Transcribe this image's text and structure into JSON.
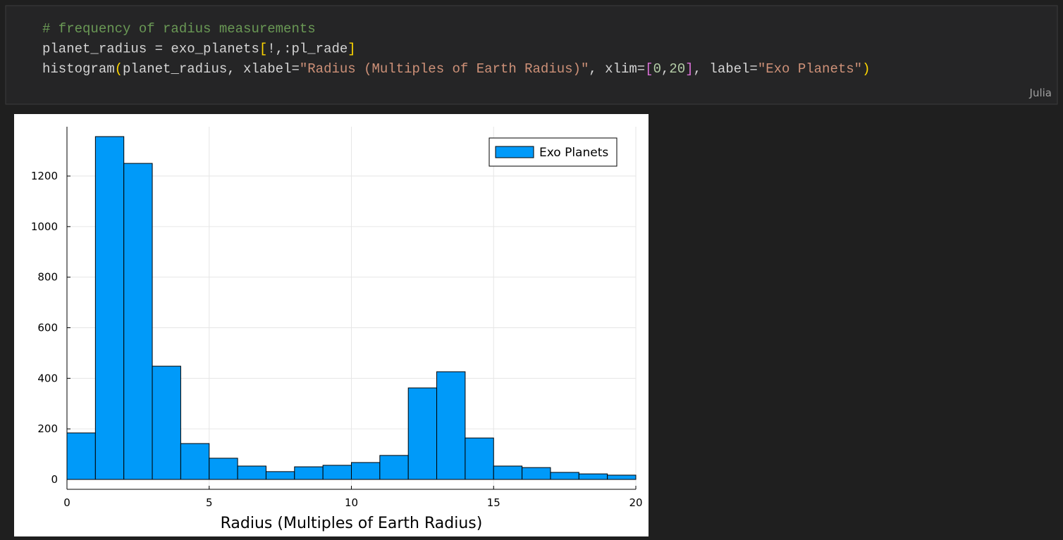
{
  "code": {
    "lines": [
      [
        {
          "text": "# frequency of radius measurements",
          "color": "#6a9955"
        }
      ],
      [
        {
          "text": "planet_radius = exo_planets",
          "color": "#d4d4d4"
        },
        {
          "text": "[",
          "color": "#ffd700"
        },
        {
          "text": "!,:pl_rade",
          "color": "#d4d4d4"
        },
        {
          "text": "]",
          "color": "#ffd700"
        }
      ],
      [
        {
          "text": "histogram",
          "color": "#d4d4d4"
        },
        {
          "text": "(",
          "color": "#ffd700"
        },
        {
          "text": "planet_radius, xlabel=",
          "color": "#d4d4d4"
        },
        {
          "text": "\"Radius (Multiples of Earth Radius)\"",
          "color": "#ce9178"
        },
        {
          "text": ", xlim=",
          "color": "#d4d4d4"
        },
        {
          "text": "[",
          "color": "#da70d6"
        },
        {
          "text": "0",
          "color": "#b5cea8"
        },
        {
          "text": ",",
          "color": "#d4d4d4"
        },
        {
          "text": "20",
          "color": "#b5cea8"
        },
        {
          "text": "]",
          "color": "#da70d6"
        },
        {
          "text": ", label=",
          "color": "#d4d4d4"
        },
        {
          "text": "\"Exo Planets\"",
          "color": "#ce9178"
        },
        {
          "text": ")",
          "color": "#ffd700"
        }
      ]
    ],
    "language": "Julia"
  },
  "chart_data": {
    "type": "histogram",
    "x_label": "Radius (Multiples of Earth Radius)",
    "bins": [
      0,
      1,
      2,
      3,
      4,
      5,
      6,
      7,
      8,
      9,
      10,
      11,
      12,
      13,
      14,
      15,
      16,
      17,
      18,
      19,
      20
    ],
    "series": [
      {
        "name": "Exo Planets",
        "color": "#009af9",
        "values": [
          184,
          1356,
          1250,
          448,
          142,
          84,
          53,
          31,
          50,
          56,
          67,
          95,
          362,
          426,
          164,
          53,
          47,
          28,
          22,
          17
        ]
      }
    ],
    "xlim": [
      0,
      20
    ],
    "xticks": [
      0,
      5,
      10,
      15,
      20
    ],
    "ylim": [
      -39,
      1395
    ],
    "yticks": [
      0,
      200,
      400,
      600,
      800,
      1000,
      1200
    ],
    "grid": true,
    "legend": "top-right"
  }
}
